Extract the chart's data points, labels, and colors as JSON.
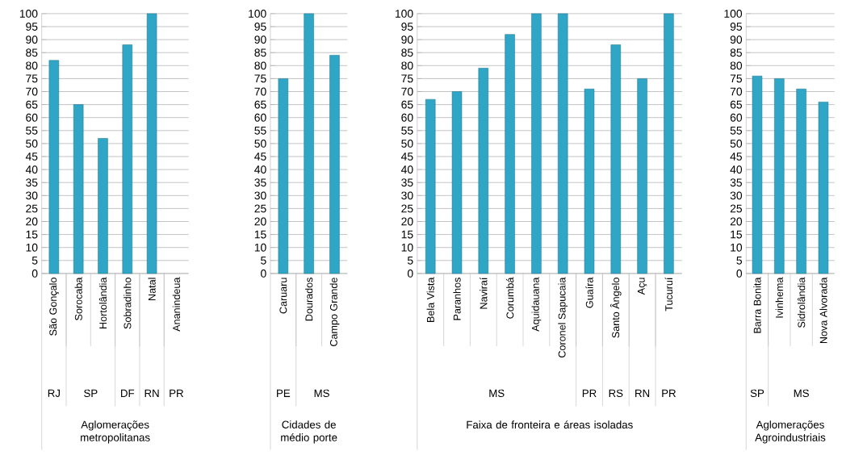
{
  "chart_data": [
    {
      "type": "bar",
      "xlabel": "Aglomerações metropolitanas",
      "categories": [
        "São Gonçalo",
        "Sorocaba",
        "Hortolândia",
        "Sobradinho",
        "Natal",
        "Ananindeua"
      ],
      "values": [
        82,
        65,
        52,
        88,
        100,
        null
      ],
      "color": "#2fa6c6",
      "ylim": [
        0,
        100
      ],
      "yticks": [
        0,
        5,
        10,
        15,
        20,
        25,
        30,
        35,
        40,
        45,
        50,
        55,
        60,
        65,
        70,
        75,
        80,
        85,
        90,
        95,
        100
      ],
      "grid": "y",
      "annotations": [
        "RJ",
        "SP",
        "DF",
        "RN",
        "PR"
      ]
    },
    {
      "type": "bar",
      "xlabel": "Cidades de médio porte",
      "categories": [
        "Caruaru",
        "Dourados",
        "Campo Grande"
      ],
      "values": [
        75,
        100,
        84
      ],
      "color": "#2fa6c6",
      "ylim": [
        0,
        100
      ],
      "yticks": [
        0,
        5,
        10,
        15,
        20,
        25,
        30,
        35,
        40,
        45,
        50,
        55,
        60,
        65,
        70,
        75,
        80,
        85,
        90,
        95,
        100
      ],
      "grid": "y",
      "annotations": [
        "PE",
        "MS"
      ]
    },
    {
      "type": "bar",
      "xlabel": "Faixa de fronteira e áreas isoladas",
      "categories": [
        "Bela Vista",
        "Paranhos",
        "Naviraí",
        "Corumbá",
        "Aquidauana",
        "Coronel Sapucaia",
        "Guaíra",
        "Santo Ângelo",
        "Açu",
        "Tucuruí"
      ],
      "values": [
        67,
        70,
        79,
        92,
        100,
        100,
        71,
        88,
        75,
        100
      ],
      "color": "#2fa6c6",
      "ylim": [
        0,
        100
      ],
      "yticks": [
        0,
        5,
        10,
        15,
        20,
        25,
        30,
        35,
        40,
        45,
        50,
        55,
        60,
        65,
        70,
        75,
        80,
        85,
        90,
        95,
        100
      ],
      "grid": "y",
      "annotations": [
        "MS",
        "PR",
        "RS",
        "RN",
        "PR"
      ]
    },
    {
      "type": "bar",
      "xlabel": "Aglomerações Agroindustriais",
      "categories": [
        "Barra Bonita",
        "Ivinhema",
        "Sidrolândia",
        "Nova Alvorada"
      ],
      "values": [
        76,
        75,
        71,
        66
      ],
      "color": "#2fa6c6",
      "ylim": [
        0,
        100
      ],
      "yticks": [
        0,
        5,
        10,
        15,
        20,
        25,
        30,
        35,
        40,
        45,
        50,
        55,
        60,
        65,
        70,
        75,
        80,
        85,
        90,
        95,
        100
      ],
      "grid": "y",
      "annotations": [
        "SP",
        "MS"
      ]
    }
  ]
}
